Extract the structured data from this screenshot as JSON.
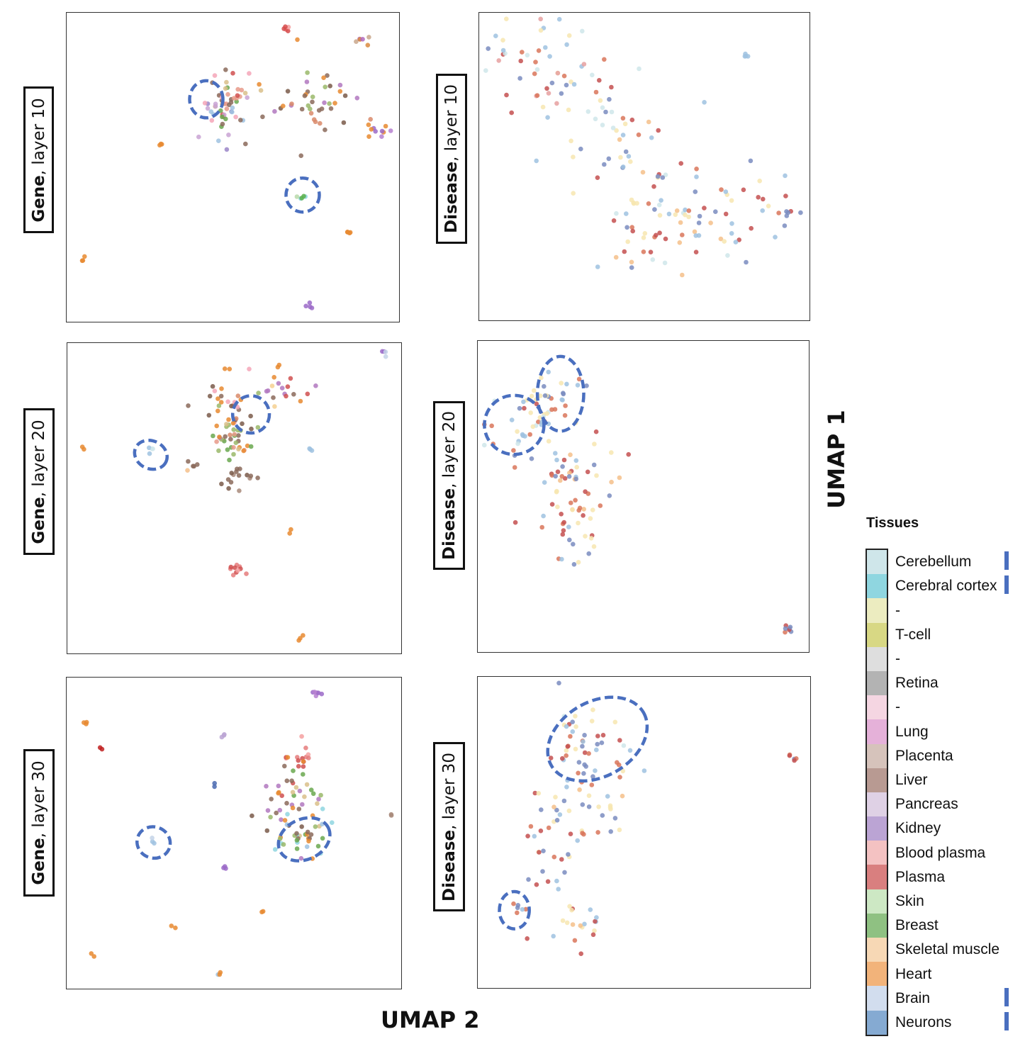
{
  "x_axis_title": "UMAP 2",
  "y_axis_title": "UMAP 1",
  "legend": {
    "title": "Tissues",
    "entries": [
      {
        "label": "Cerebellum",
        "color": "#cfe6ea"
      },
      {
        "label": "Cerebral cortex",
        "color": "#8fd6e0"
      },
      {
        "label": "-",
        "color": "#ececc0"
      },
      {
        "label": "T-cell",
        "color": "#d8d884"
      },
      {
        "label": "-",
        "color": "#dedede"
      },
      {
        "label": "Retina",
        "color": "#b3b3b3"
      },
      {
        "label": "-",
        "color": "#f5d6e2"
      },
      {
        "label": "Lung",
        "color": "#e5b1d9"
      },
      {
        "label": "Placenta",
        "color": "#d6c3bb"
      },
      {
        "label": "Liver",
        "color": "#b89a92"
      },
      {
        "label": "Pancreas",
        "color": "#dfd1e5"
      },
      {
        "label": "Kidney",
        "color": "#bba4d4"
      },
      {
        "label": "Blood plasma",
        "color": "#f4c2c2"
      },
      {
        "label": "Plasma",
        "color": "#d97f7f"
      },
      {
        "label": "Skin",
        "color": "#cde8c4"
      },
      {
        "label": "Breast",
        "color": "#8fc182"
      },
      {
        "label": "Skeletal muscle",
        "color": "#f7d8b5"
      },
      {
        "label": "Heart",
        "color": "#f2b37a"
      },
      {
        "label": "Brain",
        "color": "#d2ddee"
      },
      {
        "label": "Neurons",
        "color": "#85aad2"
      }
    ],
    "marked": [
      "Cerebellum",
      "Cerebral cortex",
      "Brain",
      "Neurons"
    ]
  },
  "chart_data": [
    {
      "type": "scatter",
      "label_bold": "Gene",
      "label_rest": ", layer 10",
      "clusters": [
        {
          "x": 0.66,
          "y": 0.95,
          "n": 5,
          "s": 0.008,
          "colors": [
            "#d64b4b",
            "#f4a0a0",
            "#e57d7d"
          ]
        },
        {
          "x": 0.89,
          "y": 0.91,
          "n": 6,
          "s": 0.012,
          "colors": [
            "#c9a78c",
            "#d98a40",
            "#b26ac0"
          ]
        },
        {
          "x": 0.48,
          "y": 0.72,
          "n": 60,
          "s": 0.045,
          "colors": [
            "#8b6a5a",
            "#e89a8a",
            "#9fc2e0",
            "#d9c08a",
            "#f4a6b8",
            "#9b86c8",
            "#6aa84f",
            "#d05050",
            "#c9a3d4"
          ]
        },
        {
          "x": 0.75,
          "y": 0.72,
          "n": 40,
          "s": 0.06,
          "colors": [
            "#8b6a5a",
            "#e88a30",
            "#b278c0",
            "#9ab86a",
            "#d98a6a",
            "#7a5a4a"
          ]
        },
        {
          "x": 0.92,
          "y": 0.62,
          "n": 10,
          "s": 0.025,
          "colors": [
            "#9b6ac8",
            "#b680d0",
            "#e88a30"
          ]
        },
        {
          "x": 0.28,
          "y": 0.57,
          "n": 3,
          "s": 0.005,
          "colors": [
            "#e88a30"
          ]
        },
        {
          "x": 0.71,
          "y": 0.41,
          "n": 5,
          "s": 0.008,
          "colors": [
            "#5ab04a",
            "#8fd6e0",
            "#b9d9a9"
          ]
        },
        {
          "x": 0.85,
          "y": 0.29,
          "n": 4,
          "s": 0.005,
          "colors": [
            "#e88a30"
          ]
        },
        {
          "x": 0.05,
          "y": 0.2,
          "n": 3,
          "s": 0.005,
          "colors": [
            "#e88a30"
          ]
        },
        {
          "x": 0.73,
          "y": 0.05,
          "n": 4,
          "s": 0.005,
          "colors": [
            "#9b6ac8"
          ]
        }
      ],
      "highlights": [
        {
          "x": 0.42,
          "y": 0.72,
          "rx": 0.05,
          "ry": 0.06,
          "rot": 0
        },
        {
          "x": 0.71,
          "y": 0.41,
          "rx": 0.05,
          "ry": 0.055,
          "rot": 0
        }
      ]
    },
    {
      "type": "scatter",
      "label_bold": "Disease",
      "label_rest": ", layer 10",
      "clusters": [
        {
          "x": 0.18,
          "y": 0.8,
          "n": 45,
          "s": 0.09,
          "colors": [
            "#d9765a",
            "#c45050",
            "#9fc2e0",
            "#cfe6ea",
            "#f7e6b0",
            "#7a8cc0",
            "#e6a0a0"
          ]
        },
        {
          "x": 0.4,
          "y": 0.58,
          "n": 45,
          "s": 0.11,
          "colors": [
            "#d9765a",
            "#c45050",
            "#9fc2e0",
            "#cfe6ea",
            "#f7e6b0",
            "#7a8cc0",
            "#f4c08a"
          ]
        },
        {
          "x": 0.55,
          "y": 0.3,
          "n": 50,
          "s": 0.1,
          "colors": [
            "#d9765a",
            "#c45050",
            "#9fc2e0",
            "#cfe6ea",
            "#f7e6b0",
            "#7a8cc0",
            "#f4c08a"
          ]
        },
        {
          "x": 0.75,
          "y": 0.38,
          "n": 30,
          "s": 0.08,
          "colors": [
            "#d9765a",
            "#c45050",
            "#9fc2e0",
            "#f7e6b0",
            "#7a8cc0"
          ]
        },
        {
          "x": 0.92,
          "y": 0.35,
          "n": 8,
          "s": 0.04,
          "colors": [
            "#d9765a",
            "#c45050",
            "#7a8cc0"
          ]
        },
        {
          "x": 0.81,
          "y": 0.85,
          "n": 4,
          "s": 0.01,
          "colors": [
            "#7a8cc0",
            "#9fc2e0"
          ]
        },
        {
          "x": 0.18,
          "y": 0.94,
          "n": 2,
          "s": 0.01,
          "colors": [
            "#9fc2e0",
            "#f7e6b0"
          ]
        }
      ],
      "highlights": []
    },
    {
      "type": "scatter",
      "label_bold": "Gene",
      "label_rest": ", layer 20",
      "clusters": [
        {
          "x": 0.48,
          "y": 0.78,
          "n": 35,
          "s": 0.045,
          "colors": [
            "#8b6a5a",
            "#e88a30",
            "#d98a6a",
            "#9ab86a",
            "#f4a6b8",
            "#7a5a4a"
          ]
        },
        {
          "x": 0.66,
          "y": 0.85,
          "n": 18,
          "s": 0.035,
          "colors": [
            "#8b6a5a",
            "#d05050",
            "#b278c0",
            "#e88a30",
            "#f4d090"
          ]
        },
        {
          "x": 0.5,
          "y": 0.7,
          "n": 30,
          "s": 0.035,
          "colors": [
            "#8b6a5a",
            "#e88a30",
            "#6aa84f",
            "#9ab86a",
            "#d9c08a",
            "#b278c0",
            "#e89a8a"
          ]
        },
        {
          "x": 0.52,
          "y": 0.57,
          "n": 15,
          "s": 0.03,
          "colors": [
            "#8b6a5a",
            "#a88a7a",
            "#7a5a4a"
          ]
        },
        {
          "x": 0.38,
          "y": 0.59,
          "n": 5,
          "s": 0.015,
          "colors": [
            "#7a5a4a",
            "#8b6a5a",
            "#f4c08a"
          ]
        },
        {
          "x": 0.25,
          "y": 0.65,
          "n": 4,
          "s": 0.008,
          "colors": [
            "#9fc2e0",
            "#cfe6ea"
          ]
        },
        {
          "x": 0.05,
          "y": 0.66,
          "n": 2,
          "s": 0.005,
          "colors": [
            "#e88a30"
          ]
        },
        {
          "x": 0.73,
          "y": 0.66,
          "n": 3,
          "s": 0.005,
          "colors": [
            "#9fc2e0"
          ]
        },
        {
          "x": 0.48,
          "y": 0.92,
          "n": 2,
          "s": 0.005,
          "colors": [
            "#e88a30"
          ]
        },
        {
          "x": 0.95,
          "y": 0.96,
          "n": 4,
          "s": 0.006,
          "colors": [
            "#9b6ac8",
            "#c4d4e8"
          ]
        },
        {
          "x": 0.67,
          "y": 0.39,
          "n": 2,
          "s": 0.005,
          "colors": [
            "#e88a30"
          ]
        },
        {
          "x": 0.51,
          "y": 0.27,
          "n": 10,
          "s": 0.012,
          "colors": [
            "#d05050",
            "#e57d7d",
            "#f4a0a0"
          ]
        },
        {
          "x": 0.7,
          "y": 0.05,
          "n": 3,
          "s": 0.005,
          "colors": [
            "#e88a30"
          ]
        }
      ],
      "highlights": [
        {
          "x": 0.55,
          "y": 0.77,
          "rx": 0.055,
          "ry": 0.06,
          "rot": 0
        },
        {
          "x": 0.25,
          "y": 0.64,
          "rx": 0.05,
          "ry": 0.045,
          "rot": 25
        }
      ]
    },
    {
      "type": "scatter",
      "label_bold": "Disease",
      "label_rest": ", layer 20",
      "clusters": [
        {
          "x": 0.24,
          "y": 0.83,
          "n": 30,
          "s": 0.045,
          "colors": [
            "#9fc2e0",
            "#cfe6ea",
            "#7a8cc0",
            "#f7e6b0",
            "#d9765a"
          ]
        },
        {
          "x": 0.14,
          "y": 0.74,
          "n": 30,
          "s": 0.05,
          "colors": [
            "#9fc2e0",
            "#cfe6ea",
            "#d9765a",
            "#c45050",
            "#f7e6b0",
            "#7a8cc0"
          ]
        },
        {
          "x": 0.28,
          "y": 0.54,
          "n": 45,
          "s": 0.07,
          "colors": [
            "#d9765a",
            "#c45050",
            "#9fc2e0",
            "#f7e6b0",
            "#7a8cc0",
            "#f4c08a"
          ]
        },
        {
          "x": 0.3,
          "y": 0.38,
          "n": 25,
          "s": 0.06,
          "colors": [
            "#d9765a",
            "#c45050",
            "#9fc2e0",
            "#f7e6b0",
            "#7a8cc0"
          ]
        },
        {
          "x": 0.94,
          "y": 0.07,
          "n": 7,
          "s": 0.006,
          "colors": [
            "#d9765a",
            "#c45050",
            "#7a8cc0"
          ]
        }
      ],
      "highlights": [
        {
          "x": 0.25,
          "y": 0.83,
          "rx": 0.07,
          "ry": 0.12,
          "rot": 0
        },
        {
          "x": 0.11,
          "y": 0.73,
          "rx": 0.09,
          "ry": 0.095,
          "rot": 0
        }
      ]
    },
    {
      "type": "scatter",
      "label_bold": "Gene",
      "label_rest": ", layer 30",
      "clusters": [
        {
          "x": 0.75,
          "y": 0.95,
          "n": 6,
          "s": 0.008,
          "colors": [
            "#9b6ac8",
            "#b680d0"
          ]
        },
        {
          "x": 0.05,
          "y": 0.86,
          "n": 3,
          "s": 0.005,
          "colors": [
            "#e88a30"
          ]
        },
        {
          "x": 0.1,
          "y": 0.78,
          "n": 2,
          "s": 0.004,
          "colors": [
            "#c02020"
          ]
        },
        {
          "x": 0.47,
          "y": 0.81,
          "n": 3,
          "s": 0.005,
          "colors": [
            "#bba4d4"
          ]
        },
        {
          "x": 0.7,
          "y": 0.75,
          "n": 12,
          "s": 0.02,
          "colors": [
            "#d05050",
            "#e57d7d",
            "#f4a0a0"
          ]
        },
        {
          "x": 0.66,
          "y": 0.65,
          "n": 20,
          "s": 0.04,
          "colors": [
            "#8b6a5a",
            "#d05050",
            "#6aa84f",
            "#b278c0",
            "#e88a30"
          ]
        },
        {
          "x": 0.68,
          "y": 0.53,
          "n": 40,
          "s": 0.05,
          "colors": [
            "#8b6a5a",
            "#e88a30",
            "#9ab86a",
            "#d9c08a",
            "#8fd6e0",
            "#b278c0",
            "#7a5a4a"
          ]
        },
        {
          "x": 0.73,
          "y": 0.47,
          "n": 15,
          "s": 0.035,
          "colors": [
            "#8b6a5a",
            "#e88a30",
            "#6aa84f",
            "#9fc2e0"
          ]
        },
        {
          "x": 0.96,
          "y": 0.56,
          "n": 2,
          "s": 0.005,
          "colors": [
            "#a88a7a"
          ]
        },
        {
          "x": 0.44,
          "y": 0.66,
          "n": 2,
          "s": 0.004,
          "colors": [
            "#4a6ab0"
          ]
        },
        {
          "x": 0.26,
          "y": 0.47,
          "n": 3,
          "s": 0.005,
          "colors": [
            "#9fc2e0",
            "#c4d4e8"
          ]
        },
        {
          "x": 0.47,
          "y": 0.39,
          "n": 3,
          "s": 0.005,
          "colors": [
            "#9b6ac8"
          ]
        },
        {
          "x": 0.59,
          "y": 0.25,
          "n": 2,
          "s": 0.004,
          "colors": [
            "#e88a30"
          ]
        },
        {
          "x": 0.32,
          "y": 0.2,
          "n": 2,
          "s": 0.005,
          "colors": [
            "#e88a30"
          ]
        },
        {
          "x": 0.07,
          "y": 0.11,
          "n": 2,
          "s": 0.005,
          "colors": [
            "#e88a30"
          ]
        },
        {
          "x": 0.46,
          "y": 0.05,
          "n": 3,
          "s": 0.006,
          "colors": [
            "#e88a30",
            "#9fc2e0"
          ]
        }
      ],
      "highlights": [
        {
          "x": 0.71,
          "y": 0.48,
          "rx": 0.08,
          "ry": 0.065,
          "rot": -25
        },
        {
          "x": 0.26,
          "y": 0.47,
          "rx": 0.05,
          "ry": 0.05,
          "rot": 20
        }
      ]
    },
    {
      "type": "scatter",
      "label_bold": "Disease",
      "label_rest": ", layer 30",
      "clusters": [
        {
          "x": 0.33,
          "y": 0.78,
          "n": 45,
          "s": 0.07,
          "colors": [
            "#9fc2e0",
            "#cfe6ea",
            "#7a8cc0",
            "#d9765a",
            "#c45050",
            "#f7e6b0"
          ]
        },
        {
          "x": 0.32,
          "y": 0.58,
          "n": 35,
          "s": 0.07,
          "colors": [
            "#d9765a",
            "#c45050",
            "#9fc2e0",
            "#f7e6b0",
            "#7a8cc0",
            "#f4c08a"
          ]
        },
        {
          "x": 0.22,
          "y": 0.43,
          "n": 20,
          "s": 0.06,
          "colors": [
            "#d9765a",
            "#c45050",
            "#9fc2e0",
            "#f7e6b0",
            "#7a8cc0"
          ]
        },
        {
          "x": 0.29,
          "y": 0.2,
          "n": 20,
          "s": 0.05,
          "colors": [
            "#d9765a",
            "#c45050",
            "#9fc2e0",
            "#f7e6b0",
            "#f4c08a"
          ]
        },
        {
          "x": 0.12,
          "y": 0.25,
          "n": 6,
          "s": 0.012,
          "colors": [
            "#7a8cc0",
            "#9fc2e0",
            "#d9765a"
          ]
        },
        {
          "x": 0.95,
          "y": 0.74,
          "n": 5,
          "s": 0.006,
          "colors": [
            "#d9765a",
            "#c45050",
            "#7a8cc0"
          ]
        }
      ],
      "highlights": [
        {
          "x": 0.36,
          "y": 0.8,
          "rx": 0.16,
          "ry": 0.12,
          "rot": -30
        },
        {
          "x": 0.11,
          "y": 0.25,
          "rx": 0.045,
          "ry": 0.06,
          "rot": 0
        }
      ]
    }
  ]
}
